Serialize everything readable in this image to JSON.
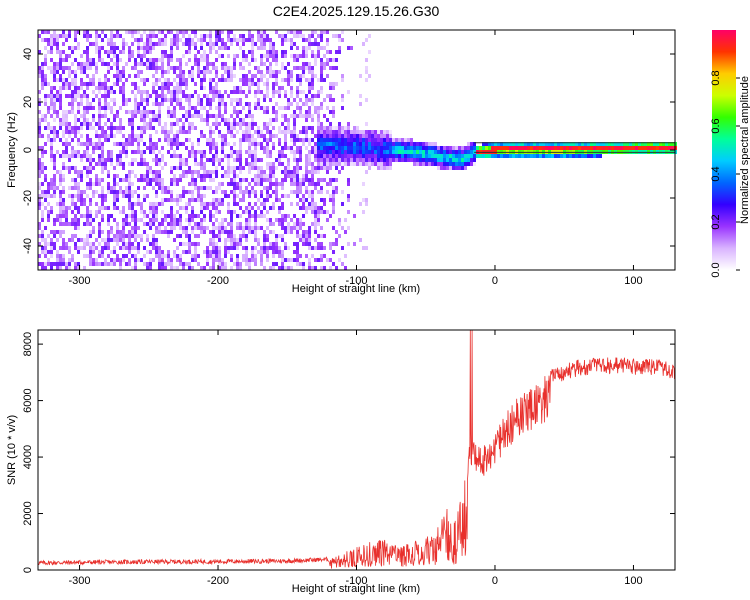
{
  "title": "C2E4.2025.129.15.26.G30",
  "chart_data": [
    {
      "type": "heatmap",
      "xlabel": "Height of straight line (km)",
      "ylabel": "Frequency (Hz)",
      "xlim": [
        -330,
        130
      ],
      "ylim": [
        -50,
        50
      ],
      "x_ticks": [
        -300,
        -200,
        -100,
        0,
        100
      ],
      "x_tick_labels": [
        "-300",
        "-200",
        "-100",
        "0",
        "100"
      ],
      "y_ticks": [
        -40,
        -20,
        0,
        20,
        40
      ],
      "y_tick_labels": [
        "-40",
        "-20",
        "0",
        "20",
        "40"
      ],
      "colorbar": {
        "label": "Normalized spectral amplitude",
        "range": [
          0.0,
          1.0
        ],
        "ticks": [
          0.0,
          0.2,
          0.4,
          0.6,
          0.8
        ],
        "tick_labels": [
          "0.0",
          "0.2",
          "0.4",
          "0.6",
          "0.8"
        ],
        "colors": [
          "#ffffff",
          "#d9b3ff",
          "#9933ff",
          "#3300ff",
          "#0066ff",
          "#00ccff",
          "#00ff99",
          "#33ff00",
          "#ccff00",
          "#ffcc00",
          "#ff3300",
          "#ff0066"
        ]
      },
      "regions": [
        {
          "x": [
            -330,
            -100
          ],
          "freq_spread": 50,
          "amplitude": 0.1
        },
        {
          "x": [
            -130,
            -40
          ],
          "freq_spread": 8,
          "amplitude": 0.35
        },
        {
          "x": [
            -75,
            -15
          ],
          "freq_spread": 4,
          "amplitude": 0.55
        },
        {
          "x": [
            -15,
            130
          ],
          "freq_spread": 2,
          "amplitude": 0.85
        }
      ],
      "line_center_hz": [
        [
          -130,
          3
        ],
        [
          -100,
          2
        ],
        [
          -80,
          1
        ],
        [
          -60,
          0
        ],
        [
          -40,
          -2
        ],
        [
          -25,
          -3
        ],
        [
          -15,
          0
        ],
        [
          0,
          1
        ],
        [
          50,
          1
        ],
        [
          130,
          2
        ]
      ]
    },
    {
      "type": "line",
      "xlabel": "Height of straight line (km)",
      "ylabel": "SNR (10 * v/v)",
      "xlim": [
        -330,
        130
      ],
      "ylim": [
        0,
        8500
      ],
      "x_ticks": [
        -300,
        -200,
        -100,
        0,
        100
      ],
      "x_tick_labels": [
        "-300",
        "-200",
        "-100",
        "0",
        "100"
      ],
      "y_ticks": [
        0,
        2000,
        4000,
        6000,
        8000
      ],
      "y_tick_labels": [
        "0",
        "2000",
        "4000",
        "6000",
        "8000"
      ],
      "series": [
        {
          "color": "#e8302c",
          "x": [
            -330,
            -300,
            -250,
            -200,
            -150,
            -120,
            -110,
            -100,
            -90,
            -80,
            -70,
            -60,
            -50,
            -40,
            -35,
            -30,
            -25,
            -20,
            -18,
            -15,
            -10,
            -5,
            0,
            5,
            10,
            20,
            30,
            40,
            50,
            60,
            70,
            80,
            90,
            100,
            110,
            120,
            130
          ],
          "y": [
            250,
            270,
            290,
            300,
            320,
            380,
            600,
            900,
            1000,
            1100,
            900,
            1000,
            1200,
            1600,
            2200,
            1800,
            2600,
            3500,
            5000,
            4500,
            4300,
            4600,
            4900,
            5300,
            5800,
            6300,
            6800,
            7100,
            7300,
            7450,
            7500,
            7550,
            7550,
            7500,
            7500,
            7450,
            7300
          ]
        }
      ]
    }
  ]
}
